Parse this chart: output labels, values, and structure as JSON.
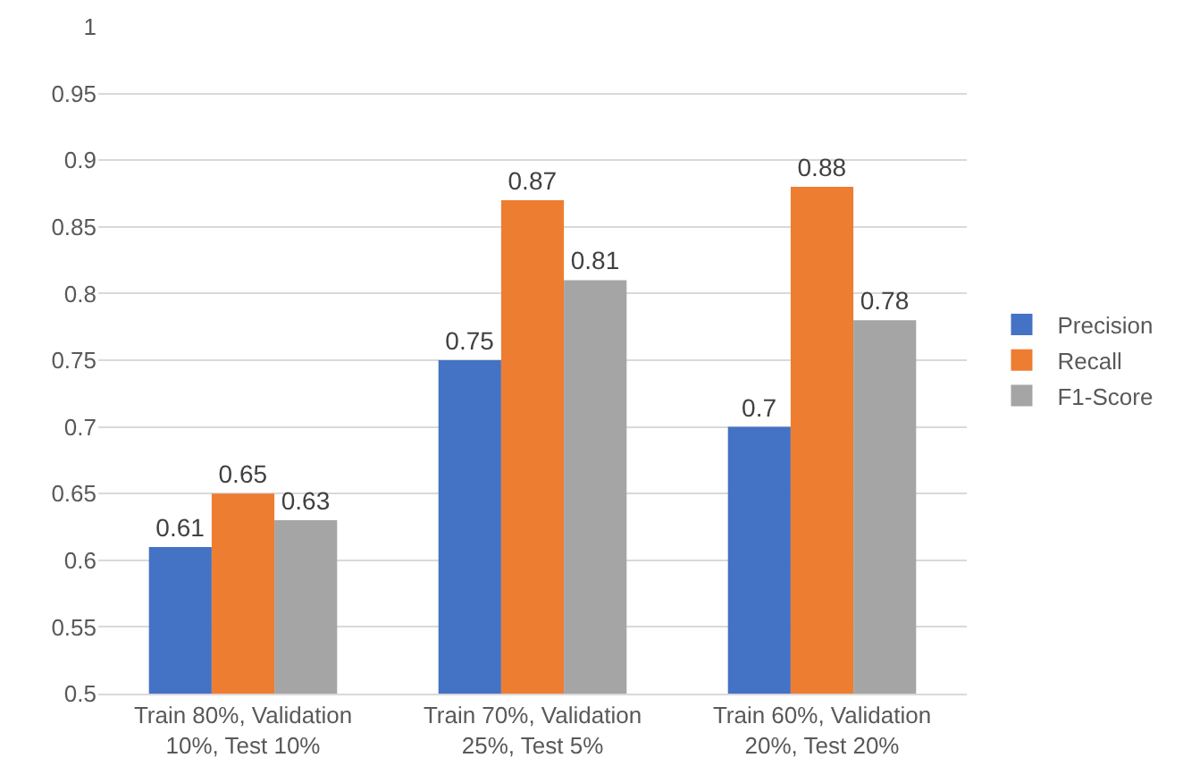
{
  "chart_data": {
    "type": "bar",
    "categories": [
      "Train 80%, Validation 10%, Test 10%",
      "Train 70%, Validation 25%, Test 5%",
      "Train 60%, Validation 20%, Test 20%"
    ],
    "series": [
      {
        "name": "Precision",
        "color": "#4472c4",
        "values": [
          0.61,
          0.75,
          0.7
        ]
      },
      {
        "name": "Recall",
        "color": "#ed7d31",
        "values": [
          0.65,
          0.87,
          0.88
        ]
      },
      {
        "name": "F1-Score",
        "color": "#a5a5a5",
        "values": [
          0.63,
          0.81,
          0.78
        ]
      }
    ],
    "ylim": [
      0.5,
      1
    ],
    "yticks": [
      0.5,
      0.55,
      0.6,
      0.65,
      0.7,
      0.75,
      0.8,
      0.85,
      0.9,
      0.95,
      1
    ],
    "grid": "y",
    "legend": "right",
    "data_labels": true
  }
}
